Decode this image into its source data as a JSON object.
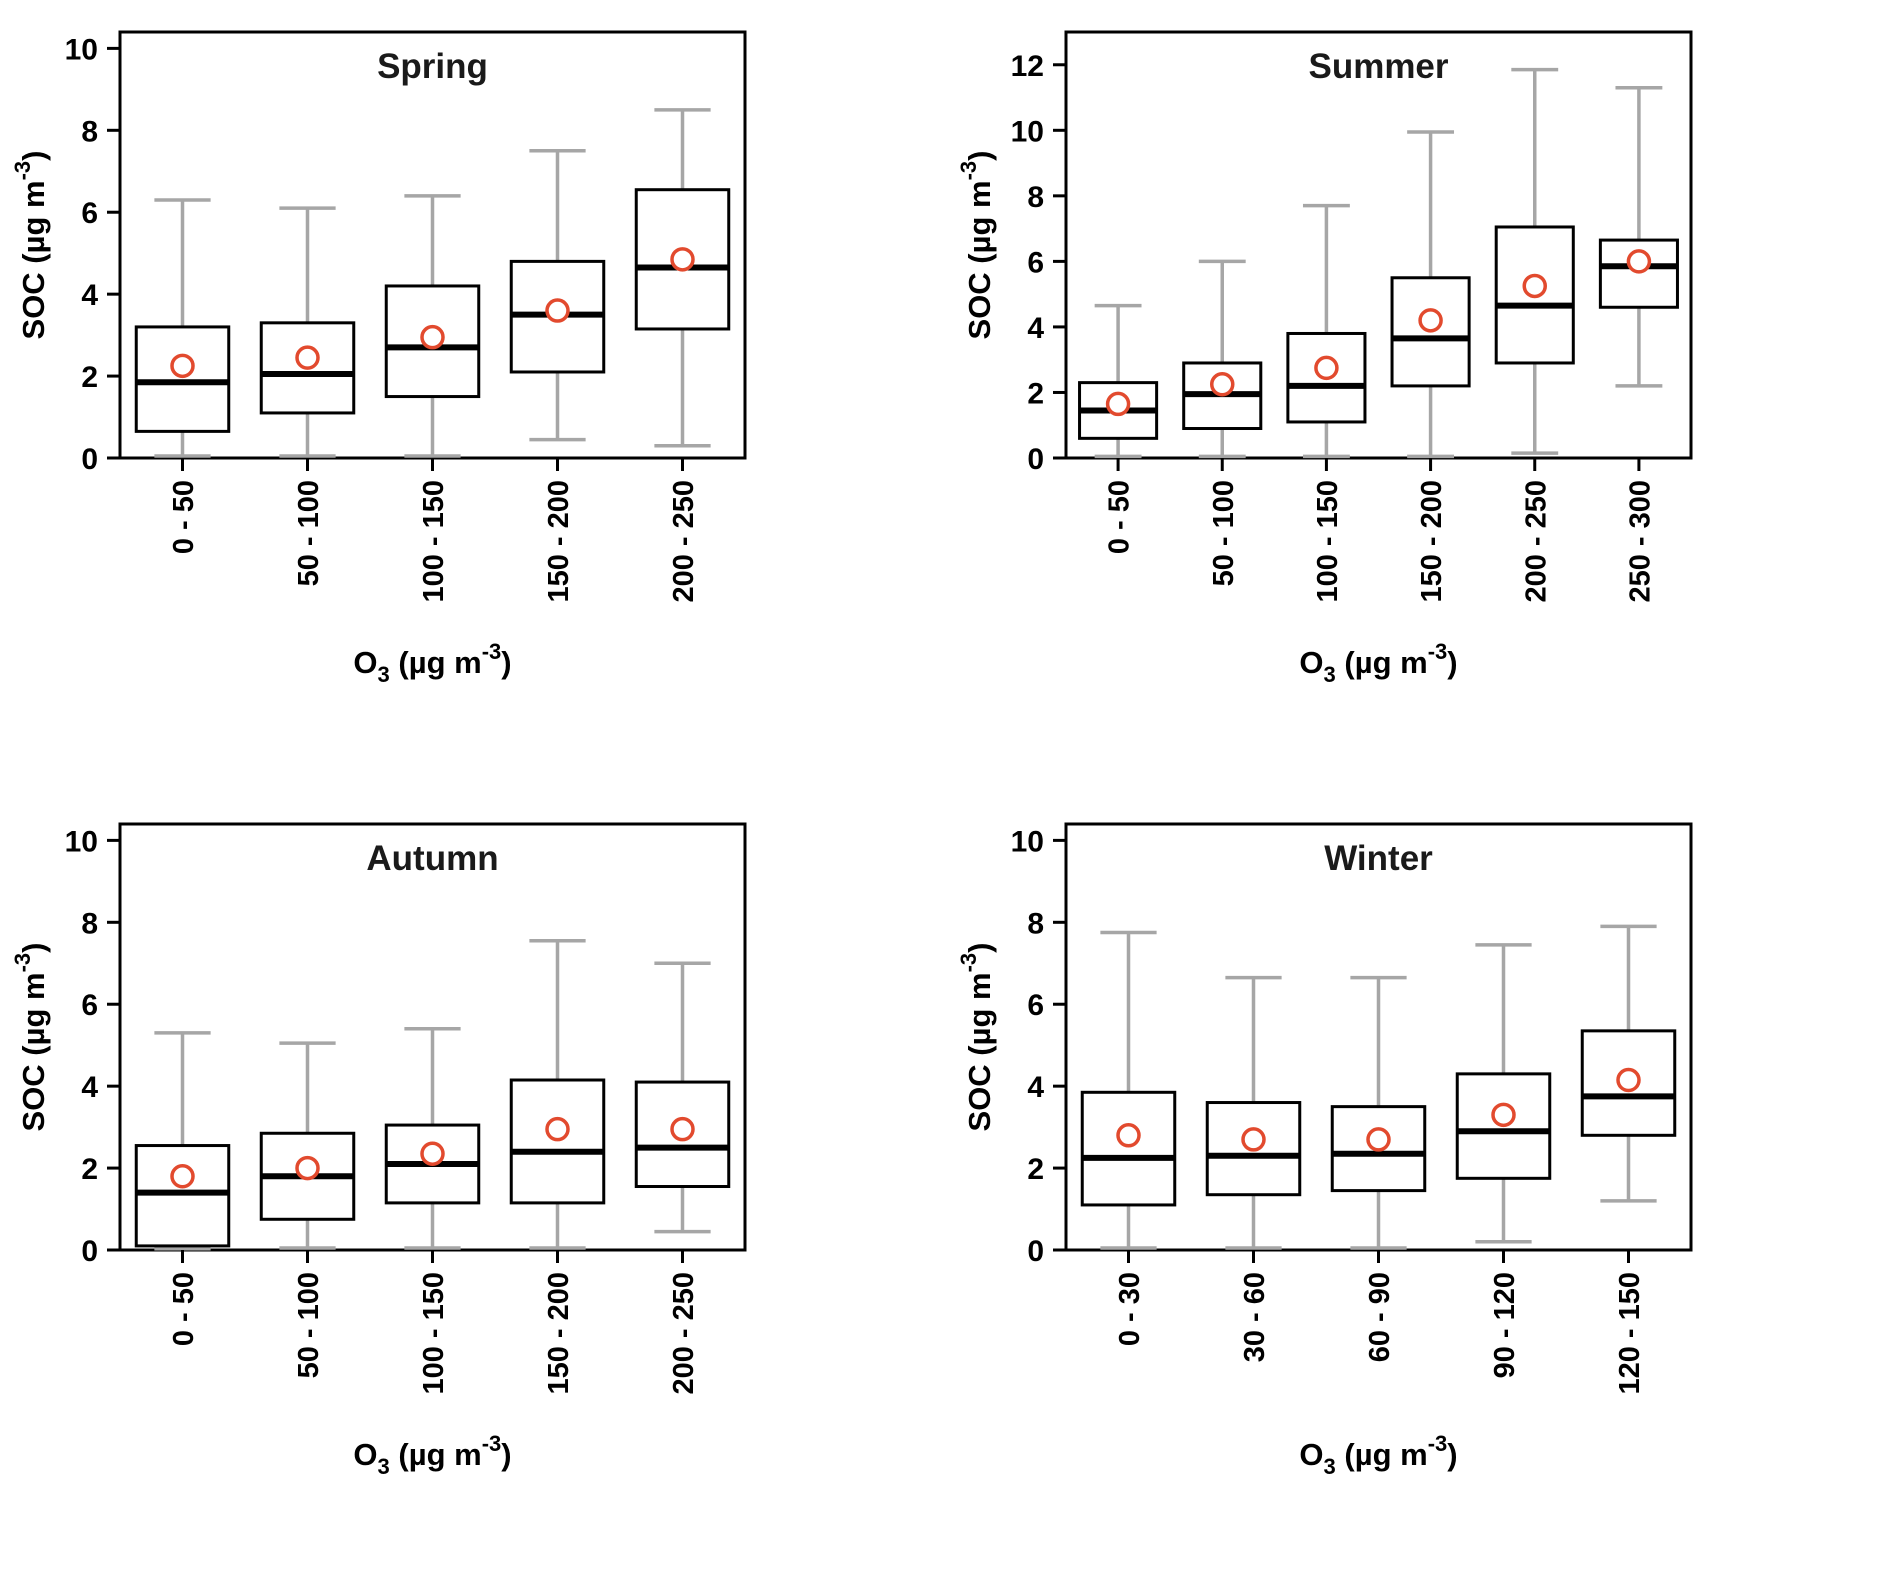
{
  "figure": {
    "background": "#ffffff",
    "colors": {
      "box_line": "#000000",
      "box_fill": "#ffffff",
      "median": "#000000",
      "whisker": "#a6a6a6",
      "mean_marker": "#e24a2e",
      "text": "#000000"
    },
    "ylabel_parts": [
      {
        "t": "SOC  (µg m"
      },
      {
        "t": "-3",
        "sup": true
      },
      {
        "t": ")"
      }
    ],
    "xlabel_parts": [
      {
        "t": "O"
      },
      {
        "t": "3",
        "sub": true
      },
      {
        "t": "  (µg m"
      },
      {
        "t": "-3",
        "sup": true
      },
      {
        "t": ")"
      }
    ]
  },
  "chart_data": [
    {
      "type": "box",
      "title": "Spring",
      "xlabel": "O₃ (µg m⁻³)",
      "ylabel": "SOC (µg m⁻³)",
      "ylim": [
        0,
        10.4
      ],
      "yticks": [
        0,
        2,
        4,
        6,
        8,
        10
      ],
      "grid": false,
      "legend": "none",
      "categories": [
        "0 - 50",
        "50 - 100",
        "100 - 150",
        "150 - 200",
        "200 - 250"
      ],
      "boxes": [
        {
          "whisker_low": 0.05,
          "q1": 0.65,
          "median": 1.85,
          "q3": 3.2,
          "whisker_high": 6.3,
          "mean": 2.25
        },
        {
          "whisker_low": 0.05,
          "q1": 1.1,
          "median": 2.05,
          "q3": 3.3,
          "whisker_high": 6.1,
          "mean": 2.45
        },
        {
          "whisker_low": 0.05,
          "q1": 1.5,
          "median": 2.7,
          "q3": 4.2,
          "whisker_high": 6.4,
          "mean": 2.95
        },
        {
          "whisker_low": 0.45,
          "q1": 2.1,
          "median": 3.5,
          "q3": 4.8,
          "whisker_high": 7.5,
          "mean": 3.6
        },
        {
          "whisker_low": 0.3,
          "q1": 3.15,
          "median": 4.65,
          "q3": 6.55,
          "whisker_high": 8.5,
          "mean": 4.85
        }
      ]
    },
    {
      "type": "box",
      "title": "Summer",
      "xlabel": "O₃ (µg m⁻³)",
      "ylabel": "SOC (µg m⁻³)",
      "ylim": [
        0,
        13
      ],
      "yticks": [
        0,
        2,
        4,
        6,
        8,
        10,
        12
      ],
      "grid": false,
      "legend": "none",
      "categories": [
        "0 - 50",
        "50 - 100",
        "100 - 150",
        "150 - 200",
        "200 - 250",
        "250 - 300"
      ],
      "boxes": [
        {
          "whisker_low": 0.05,
          "q1": 0.6,
          "median": 1.45,
          "q3": 2.3,
          "whisker_high": 4.65,
          "mean": 1.65
        },
        {
          "whisker_low": 0.05,
          "q1": 0.9,
          "median": 1.95,
          "q3": 2.9,
          "whisker_high": 6.0,
          "mean": 2.25
        },
        {
          "whisker_low": 0.05,
          "q1": 1.1,
          "median": 2.2,
          "q3": 3.8,
          "whisker_high": 7.7,
          "mean": 2.75
        },
        {
          "whisker_low": 0.05,
          "q1": 2.2,
          "median": 3.65,
          "q3": 5.5,
          "whisker_high": 9.95,
          "mean": 4.2
        },
        {
          "whisker_low": 0.15,
          "q1": 2.9,
          "median": 4.65,
          "q3": 7.05,
          "whisker_high": 11.85,
          "mean": 5.25
        },
        {
          "whisker_low": 2.2,
          "q1": 4.6,
          "median": 5.85,
          "q3": 6.65,
          "whisker_high": 11.3,
          "mean": 6.0
        }
      ]
    },
    {
      "type": "box",
      "title": "Autumn",
      "xlabel": "O₃ (µg m⁻³)",
      "ylabel": "SOC (µg m⁻³)",
      "ylim": [
        0,
        10.4
      ],
      "yticks": [
        0,
        2,
        4,
        6,
        8,
        10
      ],
      "grid": false,
      "legend": "none",
      "categories": [
        "0 - 50",
        "50 - 100",
        "100 - 150",
        "150 - 200",
        "200 - 250"
      ],
      "boxes": [
        {
          "whisker_low": 0.03,
          "q1": 0.1,
          "median": 1.4,
          "q3": 2.55,
          "whisker_high": 5.3,
          "mean": 1.8
        },
        {
          "whisker_low": 0.05,
          "q1": 0.75,
          "median": 1.8,
          "q3": 2.85,
          "whisker_high": 5.05,
          "mean": 2.0
        },
        {
          "whisker_low": 0.05,
          "q1": 1.15,
          "median": 2.1,
          "q3": 3.05,
          "whisker_high": 5.4,
          "mean": 2.35
        },
        {
          "whisker_low": 0.05,
          "q1": 1.15,
          "median": 2.4,
          "q3": 4.15,
          "whisker_high": 7.55,
          "mean": 2.95
        },
        {
          "whisker_low": 0.45,
          "q1": 1.55,
          "median": 2.5,
          "q3": 4.1,
          "whisker_high": 7.0,
          "mean": 2.95
        }
      ]
    },
    {
      "type": "box",
      "title": "Winter",
      "xlabel": "O₃ (µg m⁻³)",
      "ylabel": "SOC (µg m⁻³)",
      "ylim": [
        0,
        10.4
      ],
      "yticks": [
        0,
        2,
        4,
        6,
        8,
        10
      ],
      "grid": false,
      "legend": "none",
      "categories": [
        "0 - 30",
        "30 - 60",
        "60 - 90",
        "90 - 120",
        "120 - 150"
      ],
      "boxes": [
        {
          "whisker_low": 0.05,
          "q1": 1.1,
          "median": 2.25,
          "q3": 3.85,
          "whisker_high": 7.75,
          "mean": 2.8
        },
        {
          "whisker_low": 0.05,
          "q1": 1.35,
          "median": 2.3,
          "q3": 3.6,
          "whisker_high": 6.65,
          "mean": 2.7
        },
        {
          "whisker_low": 0.05,
          "q1": 1.45,
          "median": 2.35,
          "q3": 3.5,
          "whisker_high": 6.65,
          "mean": 2.7
        },
        {
          "whisker_low": 0.2,
          "q1": 1.75,
          "median": 2.9,
          "q3": 4.3,
          "whisker_high": 7.45,
          "mean": 3.3
        },
        {
          "whisker_low": 1.2,
          "q1": 2.8,
          "median": 3.75,
          "q3": 5.35,
          "whisker_high": 7.9,
          "mean": 4.15
        }
      ]
    }
  ]
}
